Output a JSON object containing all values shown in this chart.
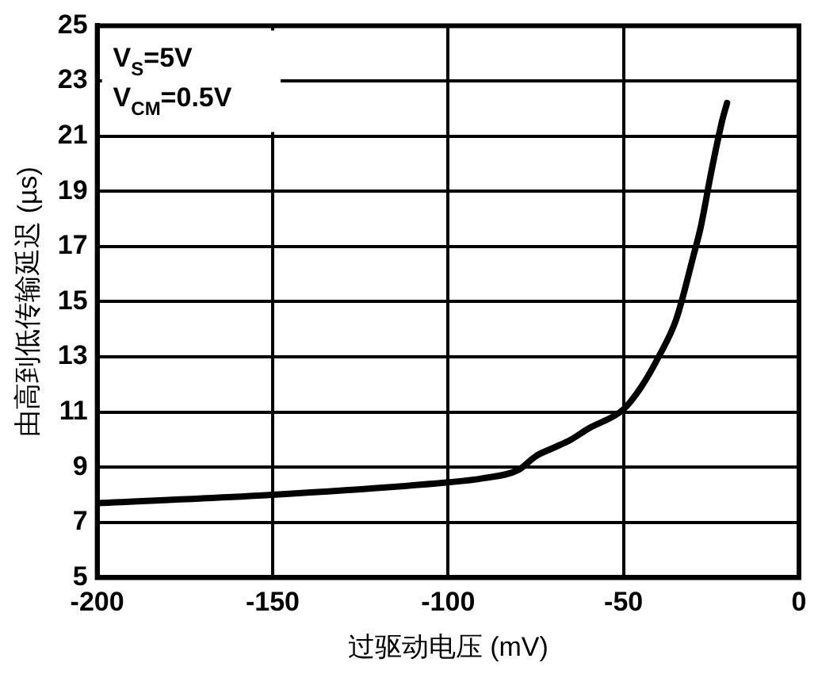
{
  "chart_data": {
    "type": "line",
    "xlabel": "过驱动电压 (mV)",
    "ylabel": "由高到低传输延迟 (µs)",
    "annotations": [
      "V$_{S}$=5V",
      "V$_{CM}$=0.5V"
    ],
    "series": [
      {
        "color": "#000000",
        "x": [
          -200,
          -150,
          -100,
          -90,
          -80,
          -75,
          -70,
          -65,
          -60,
          -50,
          -45,
          -40,
          -35,
          -30,
          -28,
          -25,
          -22,
          -20.5
        ],
        "values": [
          7.7,
          8.0,
          8.45,
          8.6,
          8.9,
          9.4,
          9.7,
          10.0,
          10.4,
          11.1,
          11.9,
          13.0,
          14.35,
          16.7,
          17.7,
          19.7,
          21.5,
          22.2
        ]
      }
    ],
    "xlim": [
      -200,
      0
    ],
    "xticks": [
      -200,
      -150,
      -100,
      -50,
      0
    ],
    "ylim": [
      5,
      25
    ],
    "yticks": [
      5,
      7,
      9,
      11,
      13,
      15,
      17,
      19,
      21,
      23,
      25
    ],
    "grid": true,
    "legend": false,
    "marker": "none",
    "line_style": "solid"
  }
}
